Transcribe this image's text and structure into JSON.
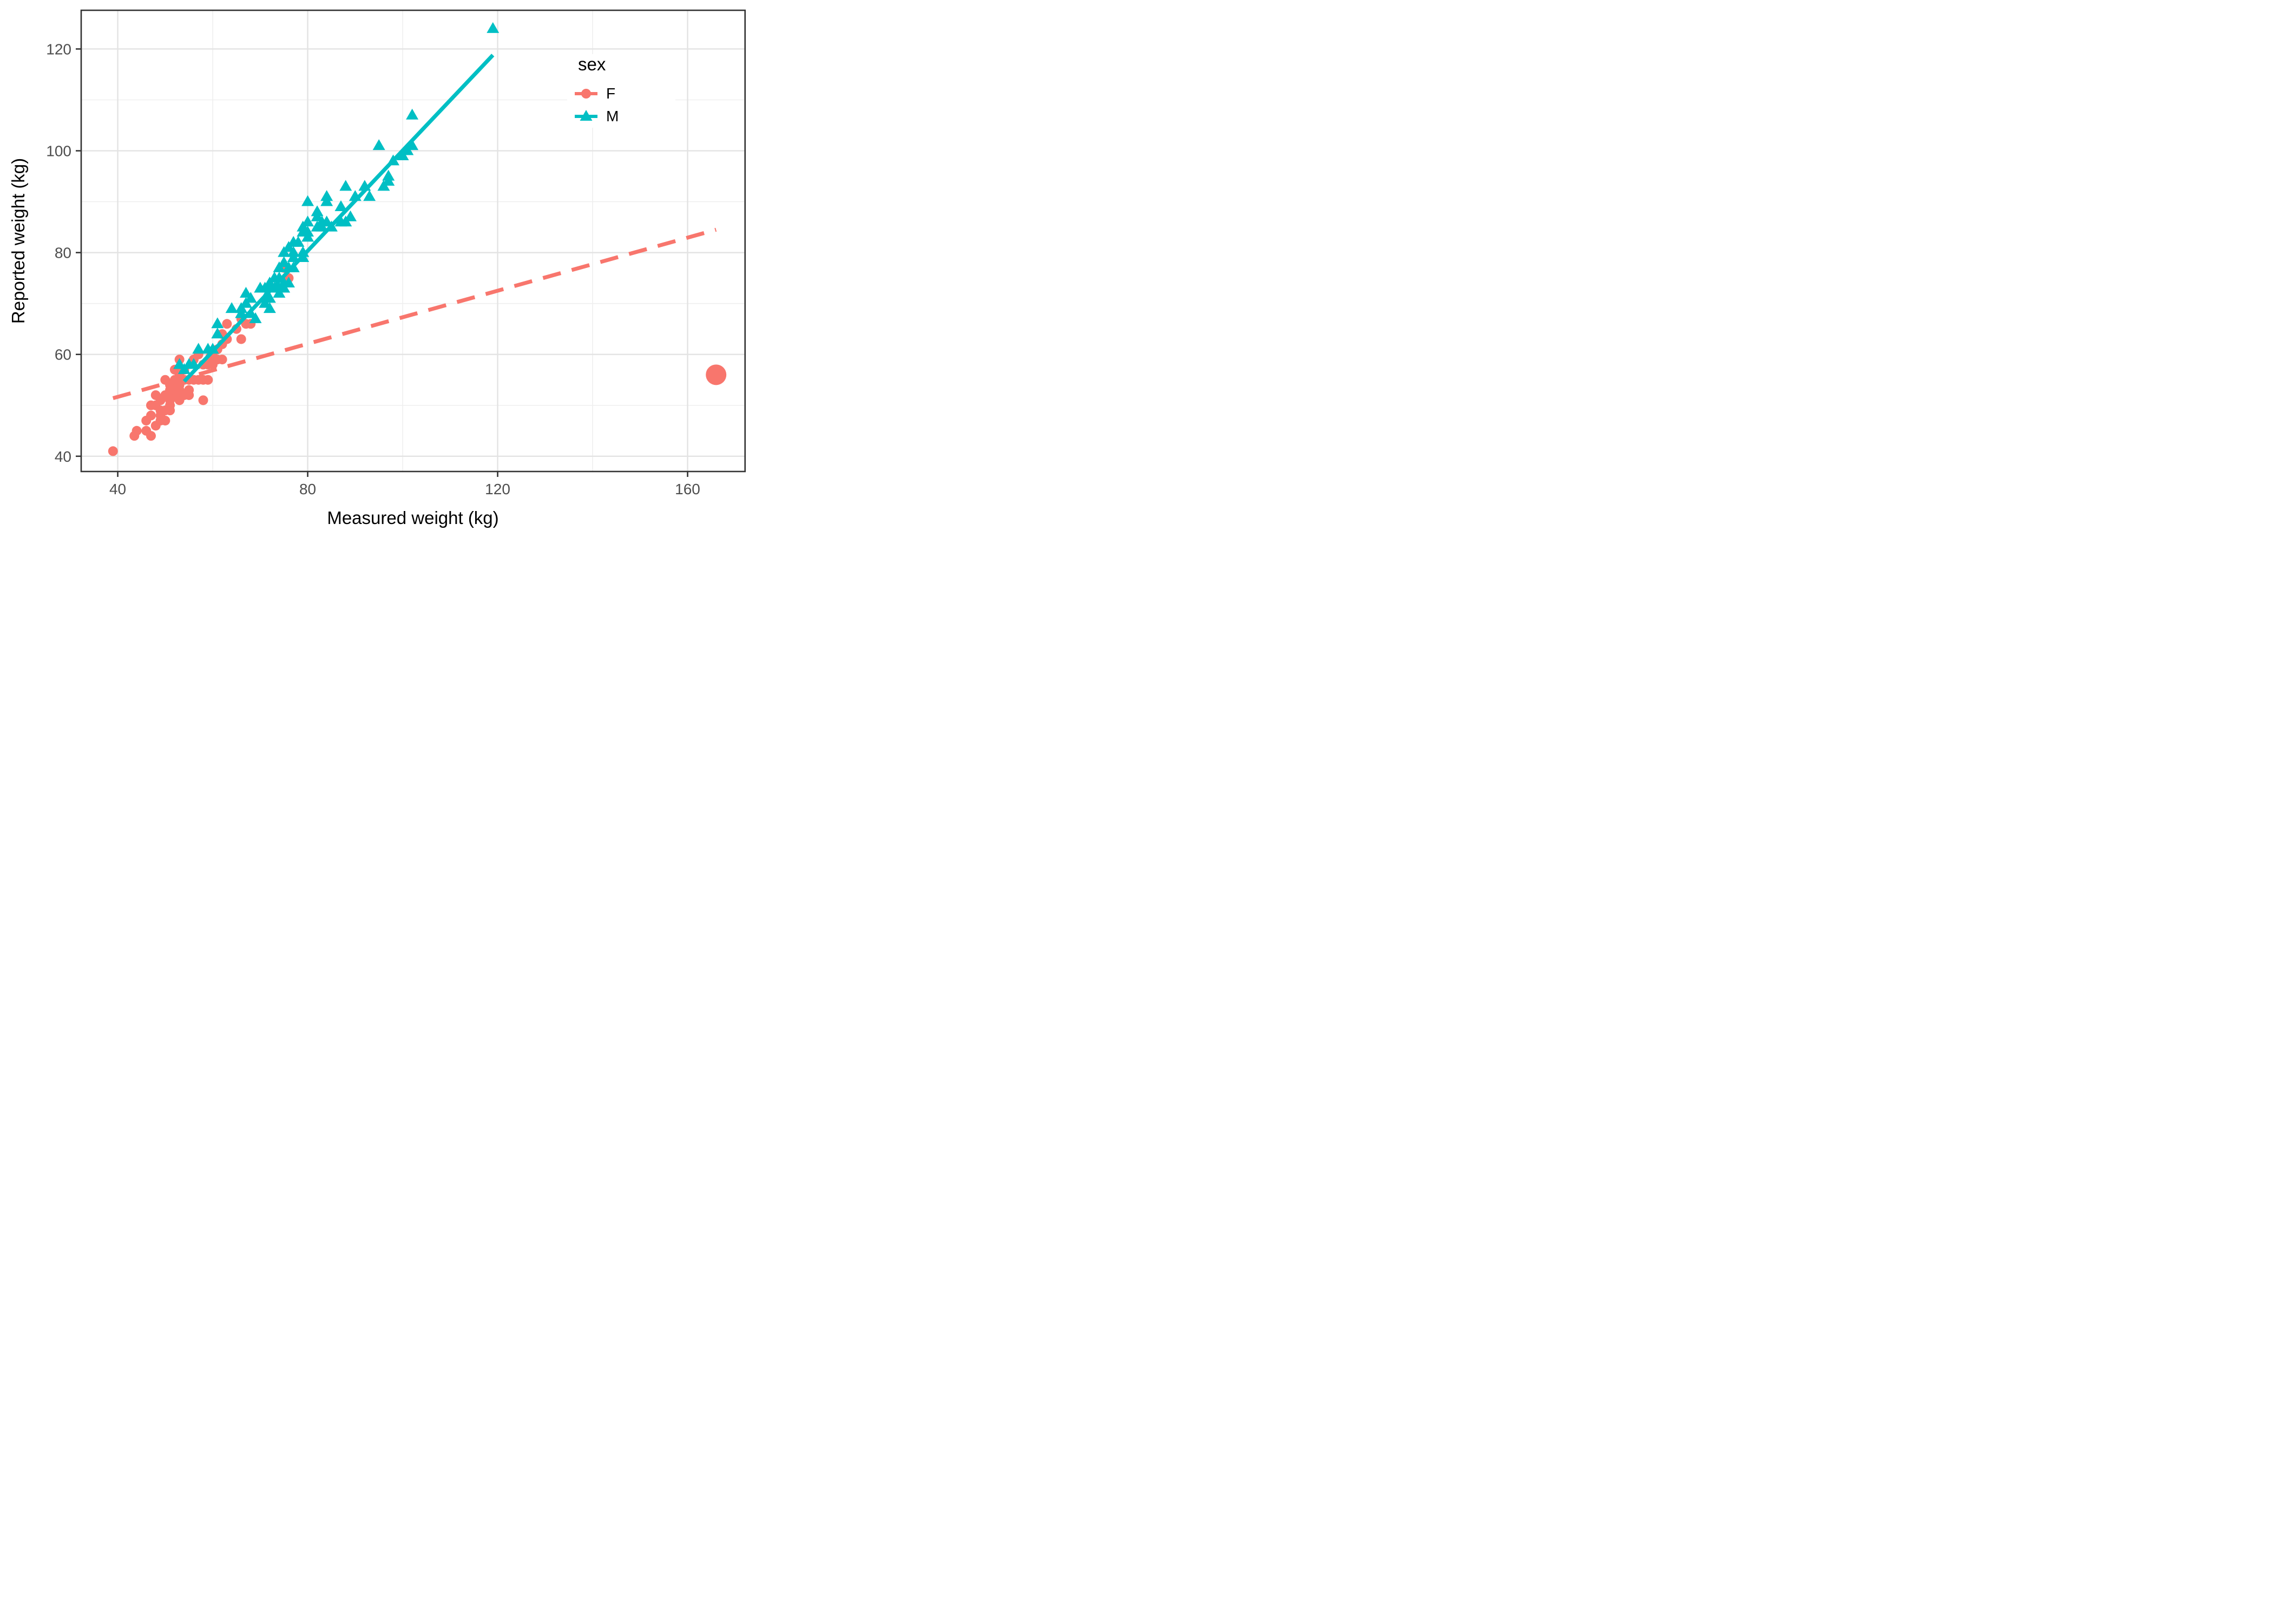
{
  "chart_data": {
    "type": "scatter",
    "title": "",
    "xlabel": "Measured weight (kg)",
    "ylabel": "Reported weight (kg)",
    "xlim": [
      32.3,
      172.1
    ],
    "ylim": [
      37.0,
      127.6
    ],
    "x_ticks": [
      40,
      80,
      120,
      160
    ],
    "y_ticks": [
      40,
      60,
      80,
      100,
      120
    ],
    "x_minor_gridlines": [
      60,
      100,
      140
    ],
    "y_minor_gridlines": [
      50,
      70,
      90,
      110
    ],
    "grid": true,
    "legend": {
      "title": "sex",
      "position": "inside-top-right",
      "entries": [
        {
          "label": "F",
          "color": "#F8766D",
          "shape": "circle"
        },
        {
          "label": "M",
          "color": "#00BFC4",
          "shape": "triangle"
        }
      ]
    },
    "series": [
      {
        "name": "F",
        "shape": "circle",
        "color": "#F8766D",
        "points": [
          [
            39,
            41
          ],
          [
            43.5,
            44
          ],
          [
            44,
            45
          ],
          [
            46,
            45
          ],
          [
            47,
            44
          ],
          [
            46,
            47
          ],
          [
            48,
            46
          ],
          [
            49,
            47
          ],
          [
            47,
            48
          ],
          [
            48,
            50
          ],
          [
            49,
            48
          ],
          [
            49,
            49
          ],
          [
            50,
            49
          ],
          [
            49,
            51
          ],
          [
            51,
            50
          ],
          [
            51,
            51
          ],
          [
            50,
            52
          ],
          [
            51,
            49
          ],
          [
            52,
            52
          ],
          [
            53,
            51
          ],
          [
            52,
            53
          ],
          [
            51,
            53
          ],
          [
            53,
            53
          ],
          [
            54,
            52
          ],
          [
            55,
            53
          ],
          [
            52,
            54
          ],
          [
            53,
            54
          ],
          [
            51,
            54
          ],
          [
            50,
            55
          ],
          [
            52,
            55
          ],
          [
            54,
            55
          ],
          [
            55,
            55
          ],
          [
            56,
            55
          ],
          [
            53,
            56
          ],
          [
            52,
            57
          ],
          [
            54,
            57
          ],
          [
            57,
            55
          ],
          [
            58,
            55
          ],
          [
            59,
            55
          ],
          [
            53,
            59
          ],
          [
            56,
            59
          ],
          [
            57,
            60
          ],
          [
            58,
            51
          ],
          [
            58,
            58
          ],
          [
            59.5,
            59.5
          ],
          [
            60,
            60
          ],
          [
            60,
            58
          ],
          [
            59,
            58
          ],
          [
            61,
            59
          ],
          [
            62,
            59
          ],
          [
            61,
            61
          ],
          [
            62,
            62
          ],
          [
            62,
            64
          ],
          [
            63,
            63
          ],
          [
            63,
            66
          ],
          [
            65,
            65
          ],
          [
            66,
            63
          ],
          [
            66,
            67
          ],
          [
            67,
            66
          ],
          [
            68,
            66
          ],
          [
            75,
            77
          ],
          [
            76,
            75
          ],
          [
            50,
            47
          ],
          [
            55,
            52
          ],
          [
            48,
            52
          ],
          [
            47,
            50
          ]
        ],
        "outlier_point": {
          "x": 166,
          "y": 56,
          "note": "oversized point"
        }
      },
      {
        "name": "M",
        "shape": "triangle",
        "color": "#00BFC4",
        "points": [
          [
            53,
            58
          ],
          [
            54,
            57
          ],
          [
            55,
            58
          ],
          [
            56,
            58
          ],
          [
            57,
            61
          ],
          [
            59,
            61
          ],
          [
            60,
            61
          ],
          [
            61,
            64
          ],
          [
            61,
            66
          ],
          [
            64,
            69
          ],
          [
            66,
            68
          ],
          [
            66,
            69
          ],
          [
            67,
            70
          ],
          [
            67,
            72
          ],
          [
            68,
            68
          ],
          [
            69,
            67
          ],
          [
            68,
            71
          ],
          [
            70,
            73
          ],
          [
            71,
            70
          ],
          [
            71,
            71
          ],
          [
            72,
            71
          ],
          [
            71,
            73
          ],
          [
            72,
            69
          ],
          [
            72,
            73
          ],
          [
            73,
            73
          ],
          [
            74,
            72
          ],
          [
            74,
            73
          ],
          [
            72,
            74
          ],
          [
            73,
            75
          ],
          [
            74,
            75
          ],
          [
            75,
            73
          ],
          [
            75,
            74
          ],
          [
            76,
            74
          ],
          [
            74,
            77
          ],
          [
            75,
            78
          ],
          [
            76,
            77
          ],
          [
            77,
            77
          ],
          [
            76,
            81
          ],
          [
            77,
            80
          ],
          [
            75,
            80
          ],
          [
            77,
            79
          ],
          [
            79,
            79
          ],
          [
            79,
            80
          ],
          [
            77,
            82
          ],
          [
            78,
            82
          ],
          [
            79,
            84
          ],
          [
            79,
            85
          ],
          [
            80,
            83
          ],
          [
            80,
            84
          ],
          [
            80,
            86
          ],
          [
            82,
            87
          ],
          [
            83,
            86
          ],
          [
            80,
            90
          ],
          [
            82,
            88
          ],
          [
            82,
            85
          ],
          [
            83,
            85
          ],
          [
            84,
            86
          ],
          [
            84,
            90
          ],
          [
            84,
            91
          ],
          [
            85,
            85
          ],
          [
            87,
            86
          ],
          [
            87,
            89
          ],
          [
            88,
            86
          ],
          [
            88,
            93
          ],
          [
            89,
            87
          ],
          [
            90,
            91
          ],
          [
            92,
            93
          ],
          [
            93,
            91
          ],
          [
            96,
            93
          ],
          [
            97,
            94
          ],
          [
            97,
            95
          ],
          [
            98,
            98
          ],
          [
            100,
            99
          ],
          [
            101,
            100
          ],
          [
            95,
            101
          ],
          [
            102,
            101
          ],
          [
            102,
            107
          ],
          [
            119,
            124
          ]
        ]
      }
    ],
    "trend_lines": [
      {
        "series": "F",
        "style": "dashed",
        "x1": 39,
        "y1": 51.4,
        "x2": 166,
        "y2": 84.5
      },
      {
        "series": "M",
        "style": "solid",
        "x1": 54,
        "y1": 54.7,
        "x2": 119,
        "y2": 118.8
      }
    ]
  },
  "style": {
    "point_color_f": "#F8766D",
    "point_color_m": "#00BFC4",
    "grid_major_color": "#E3E3E3",
    "grid_minor_color": "#EFEFEF",
    "panel_border_color": "#333333",
    "tick_color": "#333333",
    "tick_label_color": "#4D4D4D",
    "background": "#FFFFFF"
  }
}
